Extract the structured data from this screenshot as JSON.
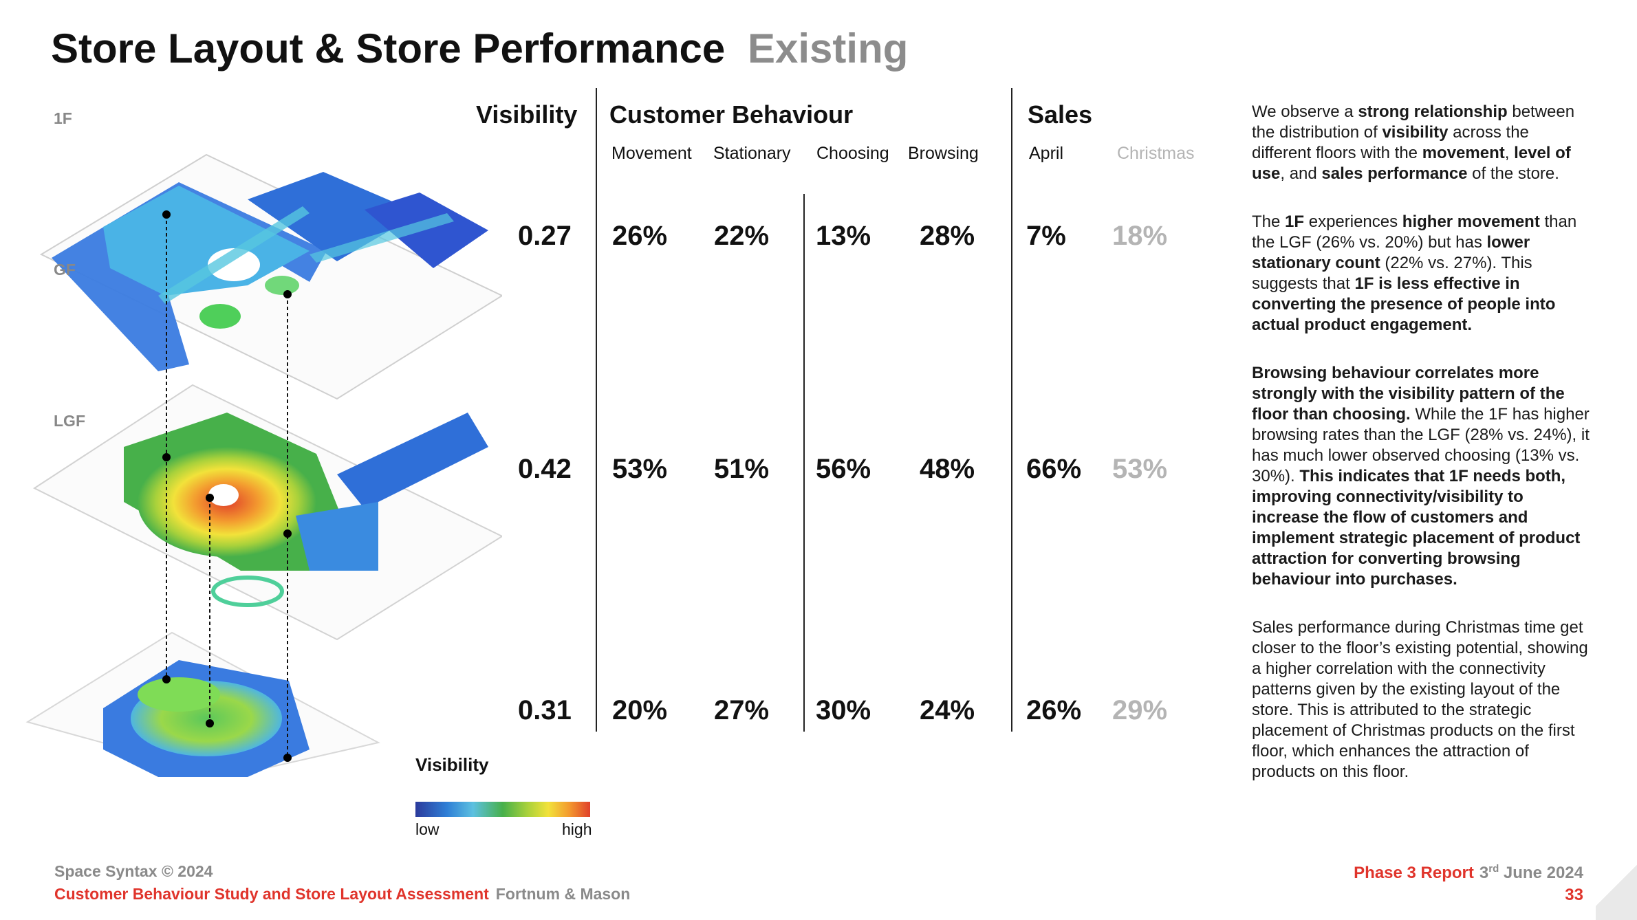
{
  "title": {
    "main": "Store Layout & Store Performance",
    "sub": "Existing"
  },
  "floors": [
    "1F",
    "GF",
    "LGF"
  ],
  "table": {
    "visibility_header": "Visibility",
    "behaviour_header": "Customer Behaviour",
    "sales_header": "Sales",
    "sub_headers": {
      "movement": "Movement",
      "stationary": "Stationary",
      "choosing": "Choosing",
      "browsing": "Browsing",
      "april": "April",
      "christmas": "Christmas"
    },
    "rows": [
      {
        "floor": "1F",
        "visibility": "0.27",
        "movement": "26%",
        "stationary": "22%",
        "choosing": "13%",
        "browsing": "28%",
        "april": "7%",
        "christmas": "18%"
      },
      {
        "floor": "GF",
        "visibility": "0.42",
        "movement": "53%",
        "stationary": "51%",
        "choosing": "56%",
        "browsing": "48%",
        "april": "66%",
        "christmas": "53%"
      },
      {
        "floor": "LGF",
        "visibility": "0.31",
        "movement": "20%",
        "stationary": "27%",
        "choosing": "30%",
        "browsing": "24%",
        "april": "26%",
        "christmas": "29%"
      }
    ]
  },
  "legend": {
    "title": "Visibility",
    "low": "low",
    "high": "high"
  },
  "side_text": {
    "p1": [
      {
        "t": "We observe a ",
        "b": false
      },
      {
        "t": "strong relationship",
        "b": true
      },
      {
        "t": " between the distribution of ",
        "b": false
      },
      {
        "t": "visibility",
        "b": true
      },
      {
        "t": " across the different floors with the ",
        "b": false
      },
      {
        "t": "movement",
        "b": true
      },
      {
        "t": ", ",
        "b": false
      },
      {
        "t": "level of use",
        "b": true
      },
      {
        "t": ", and ",
        "b": false
      },
      {
        "t": "sales performance",
        "b": true
      },
      {
        "t": " of the store.",
        "b": false
      }
    ],
    "p2": [
      {
        "t": "The ",
        "b": false
      },
      {
        "t": "1F",
        "b": true
      },
      {
        "t": " experiences ",
        "b": false
      },
      {
        "t": "higher movement",
        "b": true
      },
      {
        "t": " than the LGF (26% vs. 20%) but has ",
        "b": false
      },
      {
        "t": "lower stationary count",
        "b": true
      },
      {
        "t": " (22% vs. 27%). This suggests that ",
        "b": false
      },
      {
        "t": "1F is less effective in converting the presence of people into actual product engagement.",
        "b": true
      }
    ],
    "p3": [
      {
        "t": "Browsing behaviour correlates more strongly with the visibility pattern of the floor than choosing.",
        "b": true
      },
      {
        "t": " While the 1F has higher browsing rates than the LGF (28% vs. 24%), it has much lower observed choosing (13% vs. 30%). ",
        "b": false
      },
      {
        "t": "This indicates that 1F needs both, improving connectivity/visibility to increase the flow of customers and implement strategic placement of product attraction for converting browsing behaviour into purchases.",
        "b": true
      }
    ],
    "p4": [
      {
        "t": "Sales performance during Christmas time get closer to the floor’s existing potential, showing a higher correlation with the connectivity patterns given by the existing layout of the store. This is attributed to the strategic placement of Christmas products on the first floor, which enhances the attraction of products on this floor.",
        "b": false
      }
    ]
  },
  "footer": {
    "copyright": "Space Syntax © 2024",
    "study": "Customer Behaviour Study and Store Layout Assessment",
    "client": "Fortnum & Mason",
    "report": "Phase 3 Report",
    "date_day": "3",
    "date_sup": "rd",
    "date_rest": " June 2024",
    "page": "33"
  },
  "colors": {
    "accent_red": "#e0342b",
    "grey_text": "#8c8c8c",
    "light_grey_value": "#b4b4b4",
    "vis_low": "#2b3a9c",
    "vis_high": "#e0402a"
  }
}
